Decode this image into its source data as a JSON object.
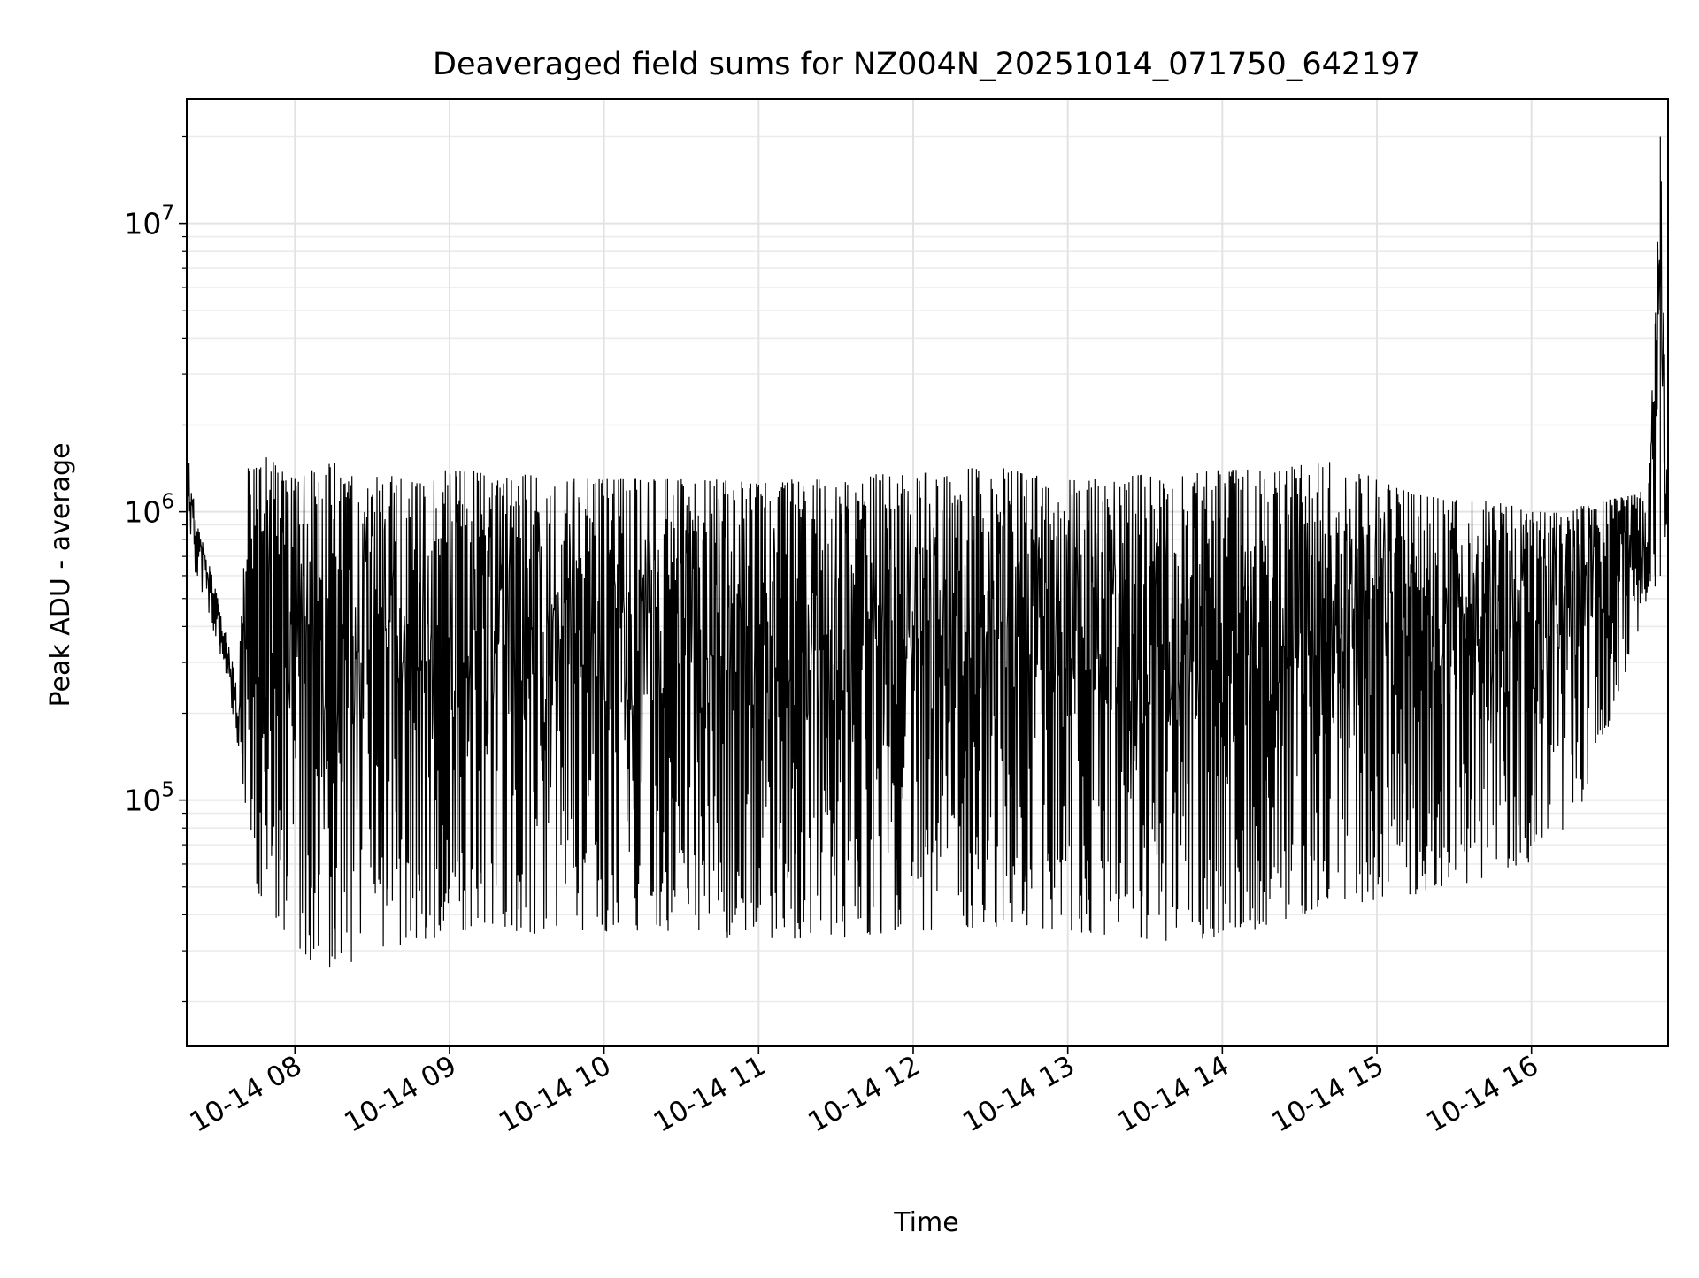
{
  "chart_data": {
    "type": "line",
    "title": "Deaveraged field sums for NZ004N_20251014_071750_642197",
    "xlabel": "Time",
    "ylabel": "Peak ADU - average",
    "xlim": [
      "2025-10-14 07:18:00",
      "2025-10-14 16:53:00"
    ],
    "yscale": "log",
    "ylim": [
      14000,
      27000000
    ],
    "grid": true,
    "x_ticks": [
      {
        "value": "2025-10-14 08:00:00",
        "label": "10-14 08"
      },
      {
        "value": "2025-10-14 09:00:00",
        "label": "10-14 09"
      },
      {
        "value": "2025-10-14 10:00:00",
        "label": "10-14 10"
      },
      {
        "value": "2025-10-14 11:00:00",
        "label": "10-14 11"
      },
      {
        "value": "2025-10-14 12:00:00",
        "label": "10-14 12"
      },
      {
        "value": "2025-10-14 13:00:00",
        "label": "10-14 13"
      },
      {
        "value": "2025-10-14 14:00:00",
        "label": "10-14 14"
      },
      {
        "value": "2025-10-14 15:00:00",
        "label": "10-14 15"
      },
      {
        "value": "2025-10-14 16:00:00",
        "label": "10-14 16"
      }
    ],
    "y_ticks": [
      {
        "value": 100000,
        "base": "10",
        "exp": "5"
      },
      {
        "value": 1000000,
        "base": "10",
        "exp": "6"
      },
      {
        "value": 10000000,
        "base": "10",
        "exp": "7"
      }
    ],
    "line_color": "#000000",
    "series": [
      {
        "x": [
          "2025-10-14 07:18:00",
          "2025-10-14 07:22:00",
          "2025-10-14 07:26:00",
          "2025-10-14 07:30:00",
          "2025-10-14 07:34:00",
          "2025-10-14 07:38:00",
          "2025-10-14 07:42:00",
          "2025-10-14 07:46:00",
          "2025-10-14 07:50:00",
          "2025-10-14 07:55:00",
          "2025-10-14 08:00:00",
          "2025-10-14 08:05:00",
          "2025-10-14 08:10:00",
          "2025-10-14 08:15:00",
          "2025-10-14 08:20:00",
          "2025-10-14 08:25:00",
          "2025-10-14 08:30:00",
          "2025-10-14 08:35:00",
          "2025-10-14 08:40:00",
          "2025-10-14 08:45:00",
          "2025-10-14 08:50:00",
          "2025-10-14 08:55:00",
          "2025-10-14 09:00:00",
          "2025-10-14 09:10:00",
          "2025-10-14 09:20:00",
          "2025-10-14 09:30:00",
          "2025-10-14 09:40:00",
          "2025-10-14 09:50:00",
          "2025-10-14 10:00:00",
          "2025-10-14 10:15:00",
          "2025-10-14 10:30:00",
          "2025-10-14 10:45:00",
          "2025-10-14 11:00:00",
          "2025-10-14 11:15:00",
          "2025-10-14 11:30:00",
          "2025-10-14 11:45:00",
          "2025-10-14 12:00:00",
          "2025-10-14 12:15:00",
          "2025-10-14 12:30:00",
          "2025-10-14 12:45:00",
          "2025-10-14 13:00:00",
          "2025-10-14 13:15:00",
          "2025-10-14 13:30:00",
          "2025-10-14 13:45:00",
          "2025-10-14 14:00:00",
          "2025-10-14 14:15:00",
          "2025-10-14 14:30:00",
          "2025-10-14 14:45:00",
          "2025-10-14 15:00:00",
          "2025-10-14 15:15:00",
          "2025-10-14 15:30:00",
          "2025-10-14 15:45:00",
          "2025-10-14 16:00:00",
          "2025-10-14 16:10:00",
          "2025-10-14 16:20:00",
          "2025-10-14 16:30:00",
          "2025-10-14 16:40:00",
          "2025-10-14 16:45:00",
          "2025-10-14 16:48:00",
          "2025-10-14 16:50:00",
          "2025-10-14 16:53:00"
        ],
        "upper": [
          1700000,
          900000,
          700000,
          500000,
          350000,
          250000,
          1500000,
          1400000,
          1600000,
          1400000,
          1300000,
          1400000,
          1400000,
          1500000,
          1300000,
          1400000,
          1300000,
          1400000,
          1300000,
          1300000,
          1300000,
          1400000,
          1400000,
          1400000,
          1300000,
          1350000,
          1300000,
          1300000,
          1300000,
          1300000,
          1300000,
          1300000,
          1250000,
          1300000,
          1300000,
          1350000,
          1350000,
          1400000,
          1450000,
          1350000,
          1300000,
          1300000,
          1350000,
          1350000,
          1400000,
          1400000,
          1450000,
          1500000,
          1300000,
          1150000,
          1100000,
          1100000,
          1000000,
          1000000,
          1050000,
          1100000,
          1150000,
          1200000,
          4500000,
          20000000,
          900000
        ],
        "lower": [
          700000,
          600000,
          450000,
          350000,
          250000,
          150000,
          80000,
          45000,
          40000,
          35000,
          32000,
          28000,
          27000,
          26000,
          27000,
          28000,
          29000,
          30000,
          31000,
          32000,
          32000,
          33000,
          33000,
          34000,
          34000,
          34000,
          35000,
          35000,
          35000,
          35000,
          34000,
          33000,
          33000,
          33000,
          33000,
          34000,
          35000,
          36000,
          36000,
          36000,
          35000,
          34000,
          33000,
          32000,
          34000,
          36000,
          40000,
          43000,
          45000,
          47000,
          50000,
          55000,
          60000,
          70000,
          100000,
          180000,
          350000,
          500000,
          550000,
          600000,
          600000
        ]
      }
    ]
  }
}
